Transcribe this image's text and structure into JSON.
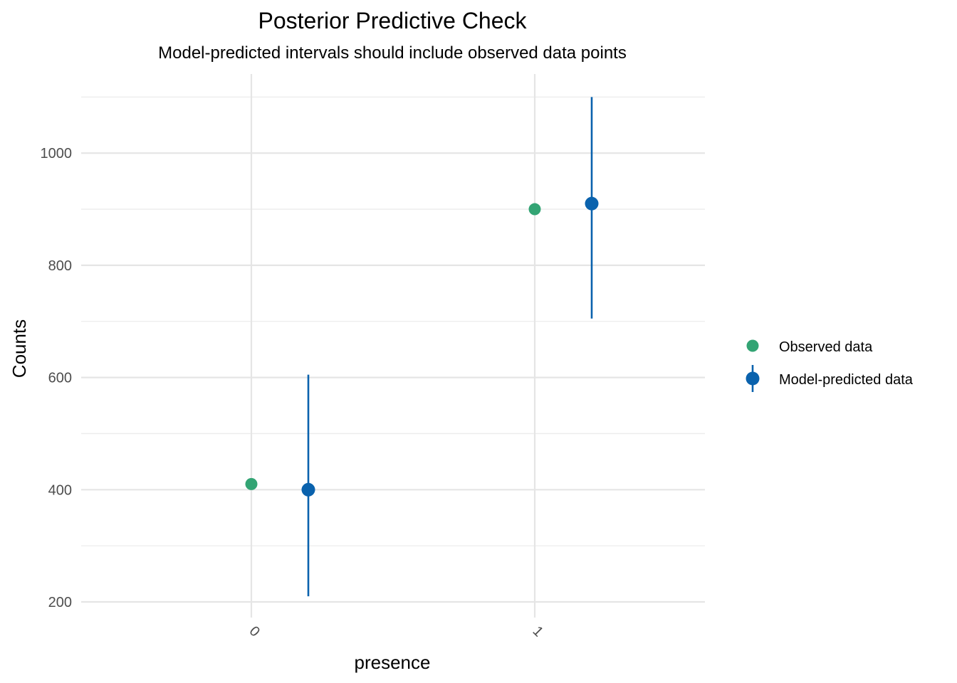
{
  "chart_data": {
    "type": "scatter",
    "title": "Posterior Predictive Check",
    "subtitle": "Model-predicted intervals should include observed data points",
    "xlabel": "presence",
    "ylabel": "Counts",
    "categories": [
      "0",
      "1"
    ],
    "y_ticks": [
      200,
      400,
      600,
      800,
      1000
    ],
    "y_tick_labels": [
      "200",
      "400",
      "600",
      "800",
      "1000"
    ],
    "ylim": [
      180,
      1120
    ],
    "grid": true,
    "legend_position": "right",
    "series": [
      {
        "name": "Observed data",
        "color": "#33a474",
        "points": [
          {
            "category": "0",
            "y": 410
          },
          {
            "category": "1",
            "y": 900
          }
        ]
      },
      {
        "name": "Model-predicted data",
        "color": "#0a62ad",
        "points": [
          {
            "category": "0",
            "y": 400,
            "ymin": 210,
            "ymax": 605
          },
          {
            "category": "1",
            "y": 910,
            "ymin": 705,
            "ymax": 1100
          }
        ]
      }
    ]
  }
}
